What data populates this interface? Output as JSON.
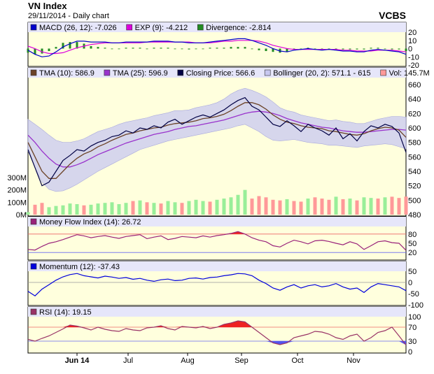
{
  "header": {
    "title": "VN Index",
    "subtitle": "29/11/2014 - Daily chart",
    "brand": "VCBS"
  },
  "colors": {
    "panel_bg": "#ffffdd",
    "legend_bg": "#e6e6fa",
    "macd": "#0000cc",
    "exp": "#dd00dd",
    "divergence": "#228b22",
    "tma10": "#6b4226",
    "tma25": "#9932cc",
    "closing": "#000044",
    "bollinger_band": "#c8c8f0",
    "vol_up": "#99ee99",
    "vol_down": "#ff9999",
    "mfi": "#99227a",
    "mfi_fill": "#ee2222",
    "momentum": "#0000dd",
    "rsi": "#993366",
    "rsi_over": "#ee2222",
    "rsi_under": "#5555ee"
  },
  "chart_data": [
    {
      "type": "line",
      "panel": "macd",
      "legend": [
        {
          "label": "MACD (26, 12): -7.026",
          "color": "#0000cc"
        },
        {
          "label": "EXP (9): -4.212",
          "color": "#dd00dd"
        },
        {
          "label": "Divergence: -2.814",
          "color": "#228b22"
        }
      ],
      "yticks": [
        "20",
        "10",
        "0",
        "-10",
        "-20"
      ],
      "ylim": [
        -20,
        20
      ],
      "x": [
        0,
        10,
        20,
        30,
        40,
        50,
        60,
        70,
        80,
        90,
        100,
        110,
        120,
        130,
        140,
        150,
        160,
        170,
        180,
        190,
        200,
        210,
        220,
        230,
        240,
        250,
        260,
        270,
        280,
        290,
        300,
        310,
        320,
        330,
        340,
        350,
        360,
        370,
        380,
        390,
        400,
        410,
        420,
        430,
        440,
        450,
        460,
        470,
        480,
        490,
        500,
        510,
        520,
        530,
        540
      ],
      "series": [
        {
          "name": "MACD",
          "values": [
            -2,
            -7,
            -10,
            -9,
            -4,
            2,
            6,
            9,
            9,
            8,
            8,
            8,
            7,
            7,
            8,
            8,
            8,
            8,
            9,
            9,
            9,
            8,
            8,
            7,
            7,
            7,
            8,
            9,
            10,
            11,
            12,
            12,
            10,
            7,
            4,
            0,
            -3,
            -4,
            -2,
            -1,
            0,
            -1,
            -2,
            -1,
            -2,
            -3,
            -3,
            -4,
            -4,
            -2,
            -1,
            -2,
            -3,
            -4,
            -7
          ]
        },
        {
          "name": "EXP",
          "values": [
            3,
            0,
            -4,
            -6,
            -6,
            -5,
            -2,
            1,
            3,
            5,
            6,
            7,
            7,
            7,
            7,
            7,
            7,
            8,
            8,
            8,
            8,
            8,
            8,
            8,
            7,
            7,
            7,
            8,
            9,
            9,
            10,
            10,
            10,
            9,
            7,
            4,
            2,
            0,
            -1,
            -1,
            -1,
            -1,
            -1,
            -1,
            -1,
            -2,
            -2,
            -3,
            -3,
            -3,
            -2,
            -2,
            -2,
            -3,
            -4
          ]
        },
        {
          "name": "Divergence",
          "values": [
            -5,
            -7,
            -6,
            -3,
            2,
            7,
            8,
            8,
            6,
            3,
            2,
            1,
            0,
            0,
            1,
            1,
            1,
            0,
            1,
            1,
            1,
            0,
            0,
            -1,
            0,
            0,
            1,
            1,
            1,
            2,
            2,
            2,
            0,
            -2,
            -3,
            -4,
            -5,
            -4,
            -1,
            0,
            1,
            0,
            -1,
            0,
            -1,
            -1,
            -1,
            -1,
            -1,
            1,
            1,
            0,
            -1,
            -1,
            -3
          ]
        }
      ]
    },
    {
      "type": "line",
      "panel": "price",
      "legend": [
        {
          "label": "TMA (10): 586.9",
          "color": "#6b4226"
        },
        {
          "label": "TMA (25): 596.9",
          "color": "#9932cc"
        },
        {
          "label": "Closing Price: 566.6",
          "color": "#000044"
        },
        {
          "label": "Bollinger (20, 2): 571.1 - 615",
          "color": "#c8c8f0"
        },
        {
          "label": "Vol: 145.7M",
          "color": "#ff9999"
        }
      ],
      "yticks": [
        "660",
        "640",
        "620",
        "600",
        "580",
        "560",
        "540",
        "520",
        "500",
        "480"
      ],
      "ylim": [
        480,
        660
      ],
      "vol_ticks": [
        "300M",
        "200M",
        "100M",
        "0M"
      ],
      "vol_lim": [
        0,
        300
      ],
      "x": [
        0,
        10,
        20,
        30,
        40,
        50,
        60,
        70,
        80,
        90,
        100,
        110,
        120,
        130,
        140,
        150,
        160,
        170,
        180,
        190,
        200,
        210,
        220,
        230,
        240,
        250,
        260,
        270,
        280,
        290,
        300,
        310,
        320,
        330,
        340,
        350,
        360,
        370,
        380,
        390,
        400,
        410,
        420,
        430,
        440,
        450,
        460,
        470,
        480,
        490,
        500,
        510,
        520,
        530,
        540
      ],
      "series": [
        {
          "name": "Closing Price",
          "values": [
            570,
            545,
            520,
            525,
            540,
            555,
            562,
            570,
            568,
            575,
            580,
            583,
            588,
            590,
            596,
            593,
            600,
            598,
            603,
            600,
            608,
            612,
            605,
            610,
            615,
            618,
            615,
            620,
            625,
            632,
            638,
            642,
            630,
            625,
            615,
            605,
            602,
            610,
            603,
            595,
            605,
            600,
            596,
            590,
            600,
            585,
            592,
            582,
            595,
            603,
            600,
            605,
            602,
            593,
            566
          ]
        },
        {
          "name": "TMA (10)",
          "values": [
            580,
            560,
            540,
            530,
            530,
            540,
            550,
            558,
            564,
            568,
            574,
            578,
            583,
            587,
            591,
            593,
            596,
            598,
            600,
            601,
            604,
            606,
            607,
            608,
            610,
            613,
            614,
            616,
            619,
            624,
            630,
            635,
            635,
            632,
            626,
            618,
            612,
            608,
            606,
            603,
            601,
            600,
            599,
            596,
            595,
            593,
            591,
            590,
            592,
            596,
            599,
            601,
            600,
            597,
            587
          ]
        },
        {
          "name": "TMA (25)",
          "values": [
            590,
            580,
            568,
            558,
            550,
            546,
            546,
            549,
            553,
            558,
            563,
            567,
            571,
            575,
            579,
            582,
            585,
            588,
            591,
            593,
            595,
            598,
            600,
            602,
            603,
            605,
            607,
            609,
            611,
            614,
            617,
            620,
            622,
            623,
            622,
            620,
            617,
            613,
            610,
            607,
            605,
            603,
            601,
            600,
            598,
            596,
            595,
            594,
            594,
            595,
            596,
            597,
            598,
            598,
            597
          ]
        },
        {
          "name": "Bollinger upper",
          "values": [
            612,
            605,
            598,
            590,
            583,
            580,
            580,
            582,
            585,
            590,
            595,
            598,
            601,
            605,
            608,
            610,
            612,
            614,
            617,
            619,
            621,
            624,
            624,
            625,
            628,
            630,
            632,
            635,
            640,
            647,
            652,
            655,
            652,
            648,
            643,
            636,
            628,
            624,
            622,
            618,
            616,
            614,
            612,
            610,
            611,
            609,
            608,
            606,
            606,
            609,
            612,
            614,
            616,
            616,
            615
          ]
        },
        {
          "name": "Bollinger lower",
          "values": [
            568,
            545,
            525,
            515,
            512,
            513,
            517,
            522,
            528,
            534,
            540,
            545,
            550,
            555,
            560,
            565,
            570,
            573,
            576,
            579,
            582,
            584,
            586,
            588,
            590,
            592,
            594,
            596,
            598,
            600,
            603,
            605,
            600,
            595,
            588,
            583,
            582,
            583,
            584,
            582,
            580,
            579,
            578,
            576,
            576,
            575,
            574,
            573,
            575,
            576,
            577,
            578,
            577,
            574,
            571
          ]
        },
        {
          "name": "Vol",
          "values": [
            20,
            80,
            95,
            60,
            70,
            75,
            90,
            85,
            75,
            80,
            90,
            95,
            100,
            85,
            95,
            110,
            115,
            100,
            95,
            90,
            110,
            100,
            95,
            110,
            120,
            110,
            105,
            120,
            130,
            140,
            160,
            200,
            130,
            150,
            140,
            120,
            115,
            125,
            110,
            105,
            130,
            140,
            130,
            120,
            145,
            125,
            130,
            115,
            140,
            135,
            130,
            140,
            145,
            135,
            146
          ]
        }
      ]
    },
    {
      "type": "line",
      "panel": "mfi",
      "legend": [
        {
          "label": "Money Flow Index (14): 26.72",
          "color": "#99227a"
        }
      ],
      "yticks": [
        "80",
        "50",
        "20"
      ],
      "ylim": [
        0,
        100
      ],
      "x": [
        0,
        10,
        20,
        30,
        40,
        50,
        60,
        70,
        80,
        90,
        100,
        110,
        120,
        130,
        140,
        150,
        160,
        170,
        180,
        190,
        200,
        210,
        220,
        230,
        240,
        250,
        260,
        270,
        280,
        290,
        300,
        310,
        320,
        330,
        340,
        350,
        360,
        370,
        380,
        390,
        400,
        410,
        420,
        430,
        440,
        450,
        460,
        470,
        480,
        490,
        500,
        510,
        520,
        530,
        540
      ],
      "series": [
        {
          "name": "Money Flow Index",
          "values": [
            30,
            28,
            40,
            50,
            55,
            62,
            70,
            78,
            74,
            68,
            72,
            75,
            70,
            66,
            72,
            75,
            78,
            65,
            70,
            74,
            62,
            66,
            72,
            70,
            68,
            74,
            70,
            75,
            78,
            82,
            88,
            80,
            68,
            60,
            55,
            42,
            38,
            50,
            60,
            55,
            48,
            58,
            60,
            56,
            50,
            45,
            55,
            48,
            30,
            42,
            55,
            58,
            52,
            50,
            27
          ]
        }
      ]
    },
    {
      "type": "line",
      "panel": "momentum",
      "legend": [
        {
          "label": "Momentum (12): -37.43",
          "color": "#0000dd"
        }
      ],
      "yticks": [
        "50",
        "0",
        "-50",
        "-100"
      ],
      "ylim": [
        -100,
        50
      ],
      "x": [
        0,
        10,
        20,
        30,
        40,
        50,
        60,
        70,
        80,
        90,
        100,
        110,
        120,
        130,
        140,
        150,
        160,
        170,
        180,
        190,
        200,
        210,
        220,
        230,
        240,
        250,
        260,
        270,
        280,
        290,
        300,
        310,
        320,
        330,
        340,
        350,
        360,
        370,
        380,
        390,
        400,
        410,
        420,
        430,
        440,
        450,
        460,
        470,
        480,
        490,
        500,
        510,
        520,
        530,
        540
      ],
      "series": [
        {
          "name": "Momentum",
          "values": [
            -40,
            -60,
            -30,
            -10,
            10,
            25,
            35,
            40,
            30,
            25,
            20,
            28,
            24,
            18,
            22,
            14,
            18,
            10,
            5,
            12,
            15,
            8,
            10,
            18,
            20,
            15,
            22,
            24,
            30,
            34,
            40,
            38,
            30,
            10,
            -5,
            -25,
            -35,
            -20,
            -10,
            -25,
            -15,
            -10,
            -20,
            -15,
            -5,
            -20,
            -30,
            -25,
            -45,
            -20,
            -5,
            -10,
            -15,
            -20,
            -37
          ]
        }
      ]
    },
    {
      "type": "line",
      "panel": "rsi",
      "legend": [
        {
          "label": "RSI (14): 19.15",
          "color": "#993366"
        }
      ],
      "yticks": [
        "100",
        "70",
        "30",
        "0"
      ],
      "ylim": [
        0,
        100
      ],
      "x": [
        0,
        10,
        20,
        30,
        40,
        50,
        60,
        70,
        80,
        90,
        100,
        110,
        120,
        130,
        140,
        150,
        160,
        170,
        180,
        190,
        200,
        210,
        220,
        230,
        240,
        250,
        260,
        270,
        280,
        290,
        300,
        310,
        320,
        330,
        340,
        350,
        360,
        370,
        380,
        390,
        400,
        410,
        420,
        430,
        440,
        450,
        460,
        470,
        480,
        490,
        500,
        510,
        520,
        530,
        540
      ],
      "series": [
        {
          "name": "RSI",
          "values": [
            35,
            30,
            38,
            45,
            55,
            65,
            76,
            73,
            68,
            62,
            70,
            64,
            60,
            58,
            66,
            62,
            60,
            68,
            70,
            74,
            66,
            62,
            72,
            70,
            68,
            72,
            66,
            70,
            78,
            82,
            88,
            85,
            70,
            55,
            40,
            25,
            20,
            25,
            40,
            45,
            50,
            58,
            56,
            50,
            40,
            35,
            45,
            50,
            30,
            40,
            55,
            60,
            70,
            45,
            19
          ]
        }
      ]
    }
  ],
  "x_axis": {
    "labels": [
      "Jun 14",
      "Jul",
      "Aug",
      "Sep",
      "Oct",
      "Nov"
    ],
    "positions": [
      70,
      143,
      228,
      305,
      385,
      465
    ]
  }
}
